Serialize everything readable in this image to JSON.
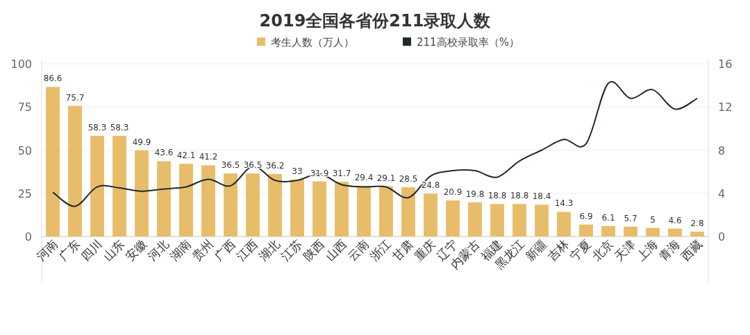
{
  "chart_data": {
    "type": "bar",
    "title": "2019全国各省份211录取人数",
    "categories": [
      "河南",
      "广东",
      "四川",
      "山东",
      "安徽",
      "河北",
      "湖南",
      "贵州",
      "广西",
      "江西",
      "湖北",
      "江苏",
      "陕西",
      "山西",
      "云南",
      "浙江",
      "甘肃",
      "重庆",
      "辽宁",
      "内蒙古",
      "福建",
      "黑龙江",
      "新疆",
      "吉林",
      "宁夏",
      "北京",
      "天津",
      "上海",
      "青海",
      "西藏"
    ],
    "series": [
      {
        "name": "考生人数（万人）",
        "color": "#e8bd6a",
        "values": [
          86.6,
          75.7,
          58.3,
          58.3,
          49.9,
          43.6,
          42.1,
          41.2,
          36.5,
          36.5,
          36.2,
          33,
          31.9,
          31.7,
          29.4,
          29.1,
          28.5,
          24.8,
          20.9,
          19.8,
          18.8,
          18.8,
          18.4,
          14.3,
          6.9,
          6.1,
          5.7,
          5,
          4.6,
          2.8
        ],
        "value_labels": [
          "86.6",
          "75.7",
          "58.3",
          "58.3",
          "49.9",
          "43.6",
          "42.1",
          "41.2",
          "36.5",
          "36.5",
          "36.2",
          "33",
          "31.9",
          "31.7",
          "29.4",
          "29.1",
          "28.5",
          "24.8",
          "20.9",
          "19.8",
          "18.8",
          "18.8",
          "18.4",
          "14.3",
          "6.9",
          "6.1",
          "5.7",
          "5",
          "4.6",
          "2.8"
        ]
      },
      {
        "name": "211高校录取率（%）",
        "type": "line",
        "axis": "y2",
        "color": "#1f2b2b",
        "values": [
          4.1,
          2.8,
          4.6,
          4.5,
          4.2,
          4.4,
          4.6,
          5.3,
          4.7,
          6.5,
          5.2,
          5.2,
          5.8,
          4.8,
          4.6,
          4.6,
          3.6,
          5.6,
          6.1,
          6.1,
          5.5,
          7.0,
          8.0,
          9.0,
          8.6,
          14.2,
          12.8,
          13.6,
          11.8,
          12.8
        ]
      }
    ],
    "ylim": [
      0,
      100
    ],
    "yticks": [
      0,
      25,
      50,
      75,
      100
    ],
    "y2lim": [
      0,
      16
    ],
    "y2ticks": [
      0,
      4,
      8,
      12,
      16
    ],
    "grid": "y",
    "legend": "top",
    "marker": "none",
    "line_style": "solid"
  }
}
